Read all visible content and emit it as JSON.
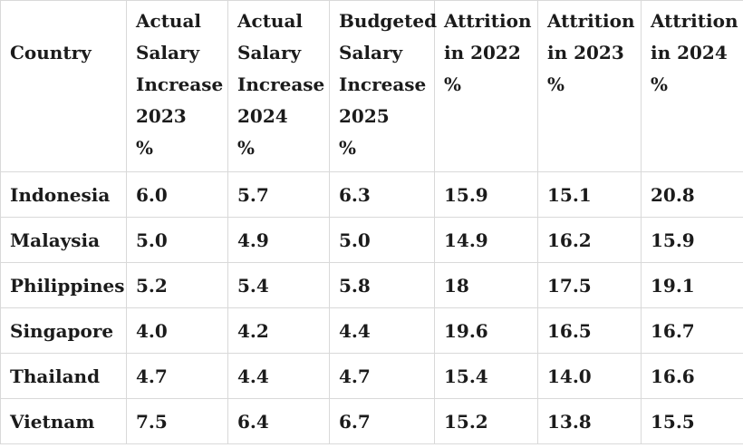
{
  "chart_data": {
    "type": "table",
    "columns": [
      "Country",
      "Actual Salary Increase 2023\n%",
      "Actual Salary Increase 2024\n%",
      "Budgeted Salary Increase 2025\n%",
      "Attrition in 2022\n%",
      "Attrition in 2023\n%",
      "Attrition in 2024\n%"
    ],
    "rows": [
      {
        "country": "Indonesia",
        "values": [
          "6.0",
          "5.7",
          "6.3",
          "15.9",
          "15.1",
          "20.8"
        ]
      },
      {
        "country": "Malaysia",
        "values": [
          "5.0",
          "4.9",
          "5.0",
          "14.9",
          "16.2",
          "15.9"
        ]
      },
      {
        "country": "Philippines",
        "values": [
          "5.2",
          "5.4",
          "5.8",
          "18",
          "17.5",
          "19.1"
        ]
      },
      {
        "country": "Singapore",
        "values": [
          "4.0",
          "4.2",
          "4.4",
          "19.6",
          "16.5",
          "16.7"
        ]
      },
      {
        "country": "Thailand",
        "values": [
          "4.7",
          "4.4",
          "4.7",
          "15.4",
          "14.0",
          "16.6"
        ]
      },
      {
        "country": "Vietnam",
        "values": [
          "7.5",
          "6.4",
          "6.7",
          "15.2",
          "13.8",
          "15.5"
        ]
      }
    ],
    "layout": {
      "grid": "full-borders",
      "header_position": "top"
    },
    "colors": {
      "text": "#1b1b1b",
      "border": "#d9d9d9",
      "background": "#ffffff"
    }
  }
}
